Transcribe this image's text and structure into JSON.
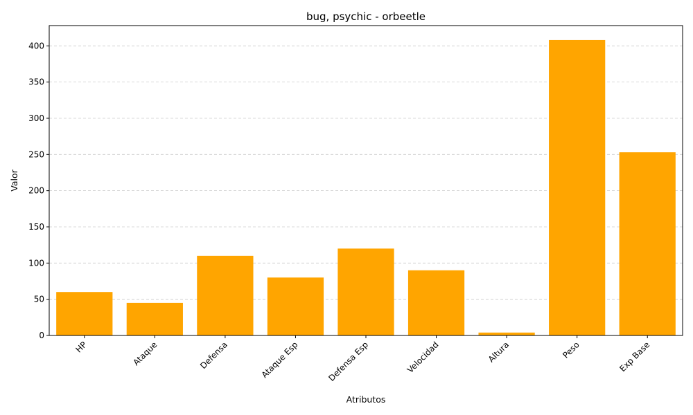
{
  "chart_data": {
    "type": "bar",
    "title": "bug, psychic - orbeetle",
    "xlabel": "Atributos",
    "ylabel": "Valor",
    "categories": [
      "HP",
      "Ataque",
      "Defensa",
      "Ataque Esp",
      "Defensa Esp",
      "Velocidad",
      "Altura",
      "Peso",
      "Exp Base"
    ],
    "values": [
      60,
      45,
      110,
      80,
      120,
      90,
      4,
      408,
      253
    ],
    "ylim": [
      0,
      428
    ],
    "yticks": [
      0,
      50,
      100,
      150,
      200,
      250,
      300,
      350,
      400
    ],
    "grid": "y-dashed",
    "bar_color": "#FFA500",
    "legend": "none"
  }
}
